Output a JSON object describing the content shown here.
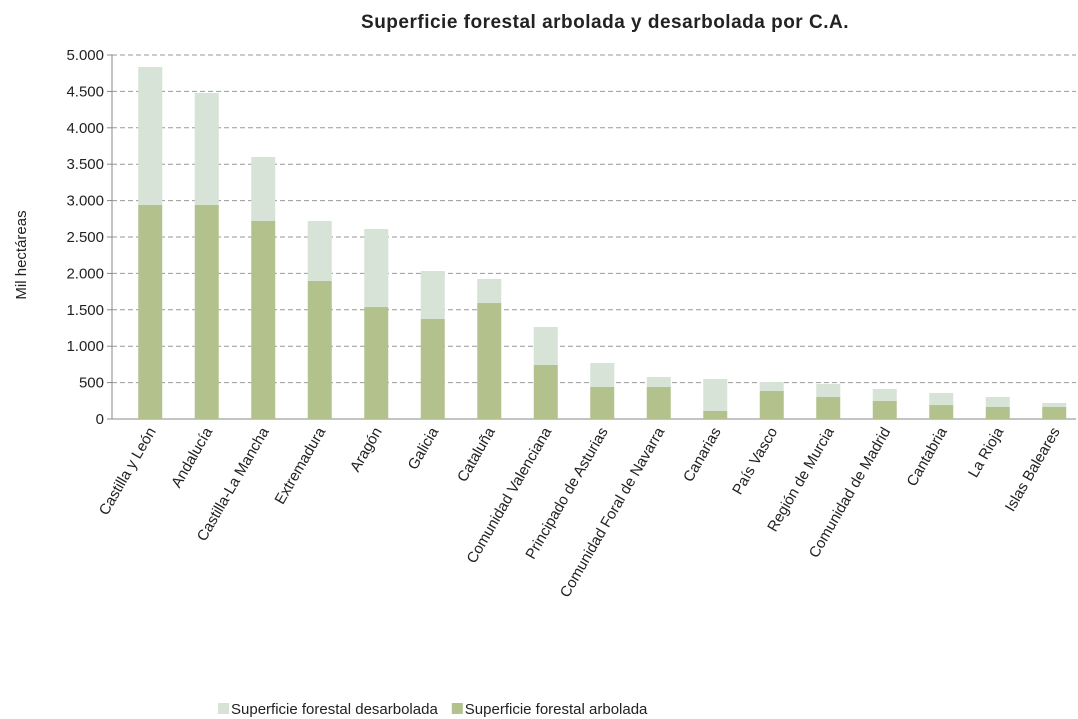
{
  "chart_data": {
    "type": "stacked_bar",
    "title": "Superficie forestal arbolada y desarbolada por C.A.",
    "y_label": "Mil hectáreas",
    "categories": [
      "Castilla y León",
      "Andalucía",
      "Castilla-La Mancha",
      "Extremadura",
      "Aragón",
      "Galicia",
      "Cataluña",
      "Comunidad Valenciana",
      "Principado de Asturias",
      "Comunidad Foral de Navarra",
      "Canarias",
      "País Vasco",
      "Región de Murcia",
      "Comunidad de Madrid",
      "Cantabria",
      "La Rioja",
      "Islas Baleares"
    ],
    "series": [
      {
        "name": "Superficie forestal desarbolada",
        "color": "#d6e3d6",
        "values": [
          1895,
          1538,
          879,
          824,
          1072,
          659,
          330,
          522,
          329,
          137,
          439,
          123,
          179,
          165,
          165,
          137,
          55
        ]
      },
      {
        "name": "Superficie forestal arbolada",
        "color": "#b3c28d",
        "values": [
          2940,
          2940,
          2720,
          1896,
          1538,
          1374,
          1593,
          742,
          440,
          440,
          110,
          385,
          302,
          247,
          192,
          165,
          165
        ]
      }
    ],
    "ylim": [
      0,
      5000
    ],
    "yticks": [
      0,
      500,
      {
        "value": 1000,
        "label": "1.000"
      },
      {
        "value": 1500,
        "label": "1.500"
      },
      {
        "value": 2000,
        "label": "2.000"
      },
      {
        "value": 2500,
        "label": "2.500"
      },
      {
        "value": 3000,
        "label": "3.000"
      },
      {
        "value": 3500,
        "label": "3.500"
      },
      {
        "value": 4000,
        "label": "4.000"
      },
      {
        "value": 4500,
        "label": "4.500"
      },
      {
        "value": 5000,
        "label": "5.000"
      }
    ],
    "grid": true,
    "legend": "bottom"
  }
}
